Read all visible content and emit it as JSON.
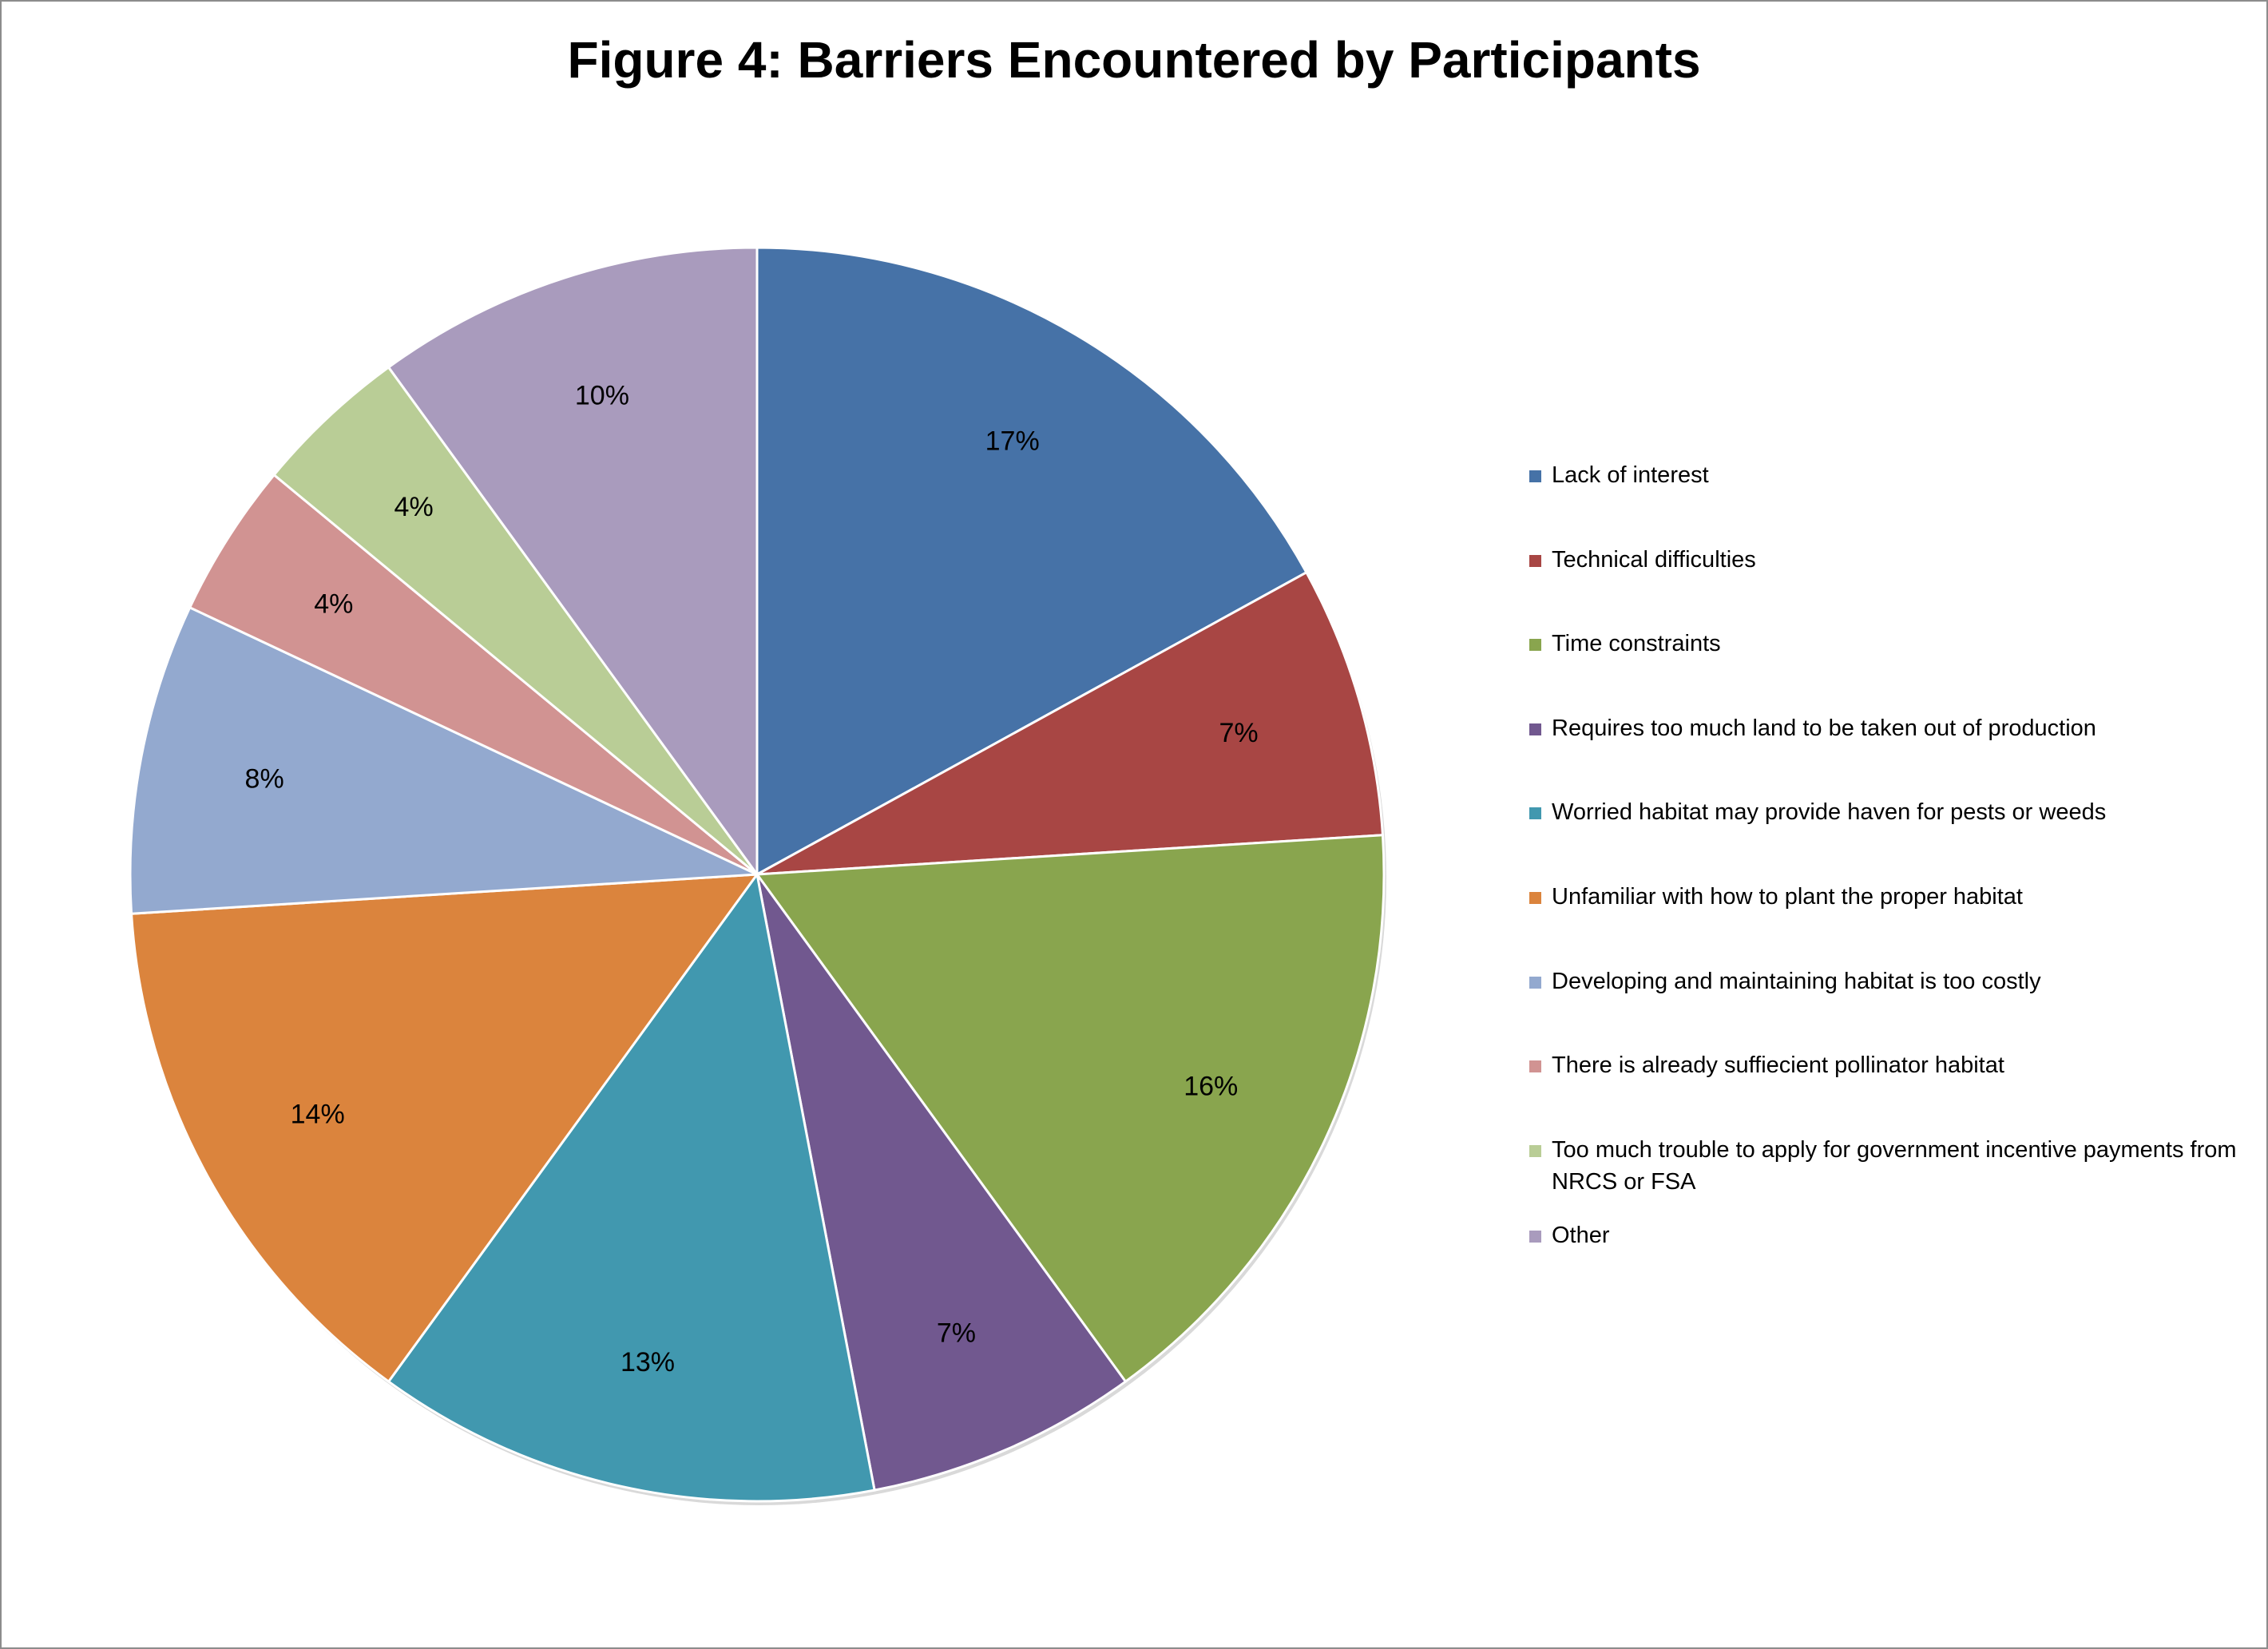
{
  "chart_data": {
    "type": "pie",
    "title": "Figure 4: Barriers Encountered by Participants",
    "legend_position": "right",
    "slices": [
      {
        "name": "Lack of interest",
        "value": 17,
        "label": "17%",
        "color": "#4672a7"
      },
      {
        "name": "Technical difficulties",
        "value": 7,
        "label": "7%",
        "color": "#a84644"
      },
      {
        "name": "Time constraints",
        "value": 16,
        "label": "16%",
        "color": "#89a54e"
      },
      {
        "name": "Requires too much land to be taken out of production",
        "value": 7,
        "label": "7%",
        "color": "#71588f"
      },
      {
        "name": "Worried habitat may provide haven for pests or weeds",
        "value": 13,
        "label": "13%",
        "color": "#4198af"
      },
      {
        "name": "Unfamiliar with how to plant the proper habitat",
        "value": 14,
        "label": "14%",
        "color": "#db843d"
      },
      {
        "name": "Developing and maintaining habitat is too costly",
        "value": 8,
        "label": "8%",
        "color": "#93a9cf"
      },
      {
        "name": "There is already suffiecient pollinator habitat",
        "value": 4,
        "label": "4%",
        "color": "#d19392"
      },
      {
        "name": "Too much trouble to apply for government incentive payments from NRCS or FSA",
        "value": 4,
        "label": "4%",
        "color": "#b9cd96"
      },
      {
        "name": "Other",
        "value": 10,
        "label": "10%",
        "color": "#a99bbd"
      }
    ]
  }
}
